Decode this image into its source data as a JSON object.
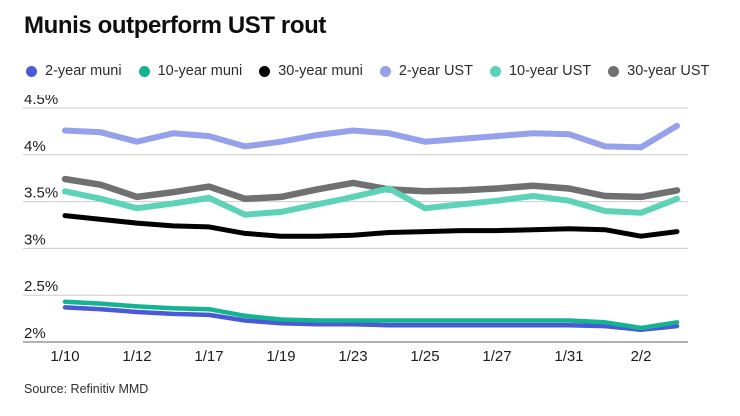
{
  "header": {
    "title": "Munis outperform UST rout"
  },
  "source": {
    "label": "Source: Refinitiv MMD"
  },
  "chart_data": {
    "type": "line",
    "title": "Munis outperform UST rout",
    "x": [
      "1/10",
      "1/11",
      "1/12",
      "1/13",
      "1/17",
      "1/18",
      "1/19",
      "1/20",
      "1/23",
      "1/24",
      "1/25",
      "1/26",
      "1/27",
      "1/30",
      "1/31",
      "2/1",
      "2/2",
      "2/3"
    ],
    "x_tick_labels": [
      "1/10",
      "1/12",
      "1/17",
      "1/19",
      "1/23",
      "1/25",
      "1/27",
      "1/31",
      "2/2"
    ],
    "y_ticks": [
      4.5,
      4,
      3.5,
      3,
      2.5,
      2
    ],
    "y_tick_labels": [
      "4.5%",
      "4%",
      "3.5%",
      "3%",
      "2.5%",
      "2%"
    ],
    "ylim": [
      2,
      4.5
    ],
    "unit": "%",
    "grid": "horizontal",
    "legend_position": "top",
    "series": [
      {
        "name": "2-year muni",
        "color": "#4a59d6",
        "values": [
          2.37,
          2.35,
          2.32,
          2.3,
          2.29,
          2.23,
          2.2,
          2.19,
          2.19,
          2.18,
          2.18,
          2.18,
          2.18,
          2.18,
          2.18,
          2.17,
          2.13,
          2.17
        ]
      },
      {
        "name": "10-year muni",
        "color": "#14b392",
        "values": [
          2.43,
          2.41,
          2.38,
          2.36,
          2.35,
          2.28,
          2.24,
          2.23,
          2.23,
          2.23,
          2.23,
          2.23,
          2.23,
          2.23,
          2.23,
          2.21,
          2.15,
          2.21
        ]
      },
      {
        "name": "30-year muni",
        "color": "#000000",
        "values": [
          3.35,
          3.31,
          3.27,
          3.24,
          3.23,
          3.16,
          3.13,
          3.13,
          3.14,
          3.17,
          3.18,
          3.19,
          3.19,
          3.2,
          3.21,
          3.2,
          3.13,
          3.18
        ]
      },
      {
        "name": "2-year UST",
        "color": "#95a1ea",
        "values": [
          4.26,
          4.24,
          4.14,
          4.23,
          4.2,
          4.09,
          4.14,
          4.21,
          4.26,
          4.23,
          4.14,
          4.17,
          4.2,
          4.23,
          4.22,
          4.09,
          4.08,
          4.31
        ]
      },
      {
        "name": "10-year UST",
        "color": "#5cd3b6",
        "values": [
          3.61,
          3.53,
          3.43,
          3.48,
          3.54,
          3.36,
          3.39,
          3.47,
          3.55,
          3.64,
          3.43,
          3.47,
          3.51,
          3.56,
          3.51,
          3.4,
          3.38,
          3.53
        ]
      },
      {
        "name": "30-year UST",
        "color": "#707073",
        "values": [
          3.74,
          3.68,
          3.55,
          3.6,
          3.66,
          3.53,
          3.55,
          3.63,
          3.7,
          3.63,
          3.61,
          3.62,
          3.64,
          3.67,
          3.64,
          3.56,
          3.55,
          3.62
        ]
      }
    ]
  }
}
